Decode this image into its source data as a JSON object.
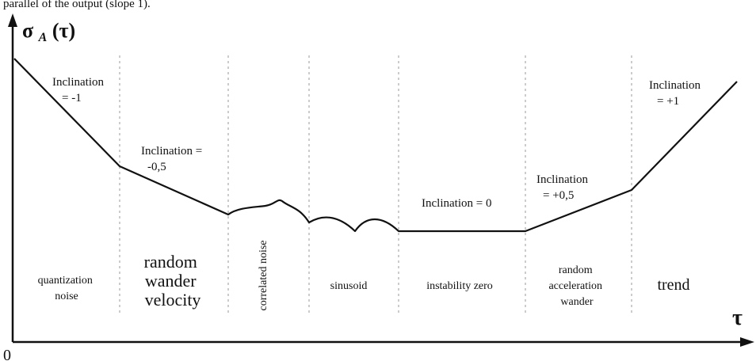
{
  "top_caption": "parallel of the output (slope 1).",
  "axes": {
    "y_label": "σ",
    "y_subscript": "A",
    "y_argument": "(τ)",
    "x_label": "τ",
    "origin": "0"
  },
  "slopes": [
    {
      "line1": "Inclination",
      "line2": "= -1"
    },
    {
      "line1": "Inclination =",
      "line2": "-0,5"
    },
    {
      "line1": "Inclination = 0",
      "line2": ""
    },
    {
      "line1": "Inclination",
      "line2": "= +0,5"
    },
    {
      "line1": "Inclination",
      "line2": "= +1"
    }
  ],
  "regions": [
    {
      "lines": [
        "quantization",
        "noise"
      ]
    },
    {
      "lines": [
        "random",
        "wander",
        "velocity"
      ]
    },
    {
      "lines": [
        "correlated noise"
      ]
    },
    {
      "lines": [
        "sinusoid"
      ]
    },
    {
      "lines": [
        "instability zero"
      ]
    },
    {
      "lines": [
        "random",
        "acceleration",
        "wander"
      ]
    },
    {
      "lines": [
        "trend"
      ]
    }
  ],
  "colors": {
    "ink": "#111111",
    "divider": "#9a9a9a"
  }
}
